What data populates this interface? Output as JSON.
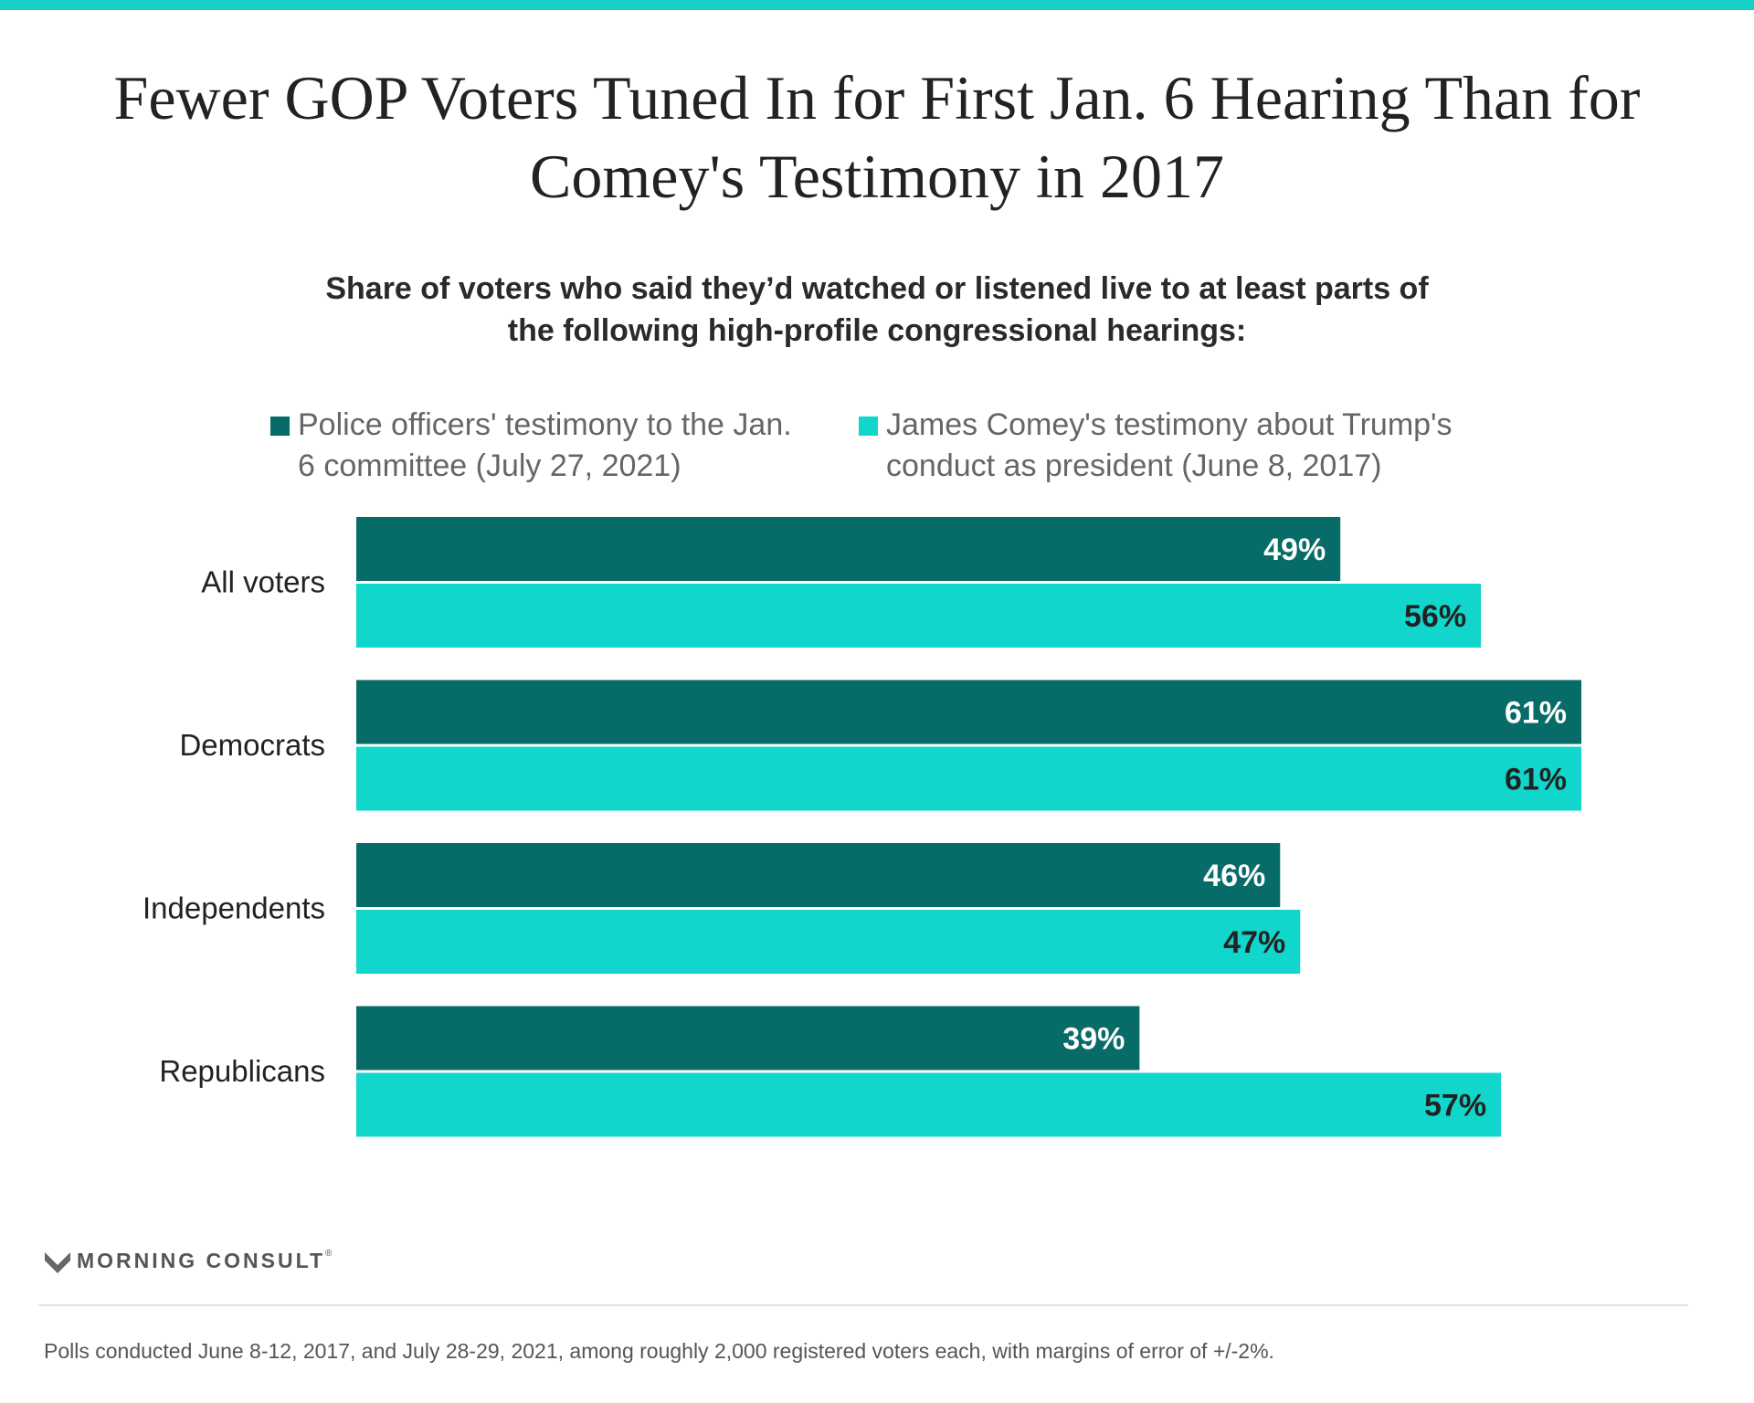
{
  "colors": {
    "top_bar": "#14d0c6",
    "series_2021": "#076b67",
    "series_2017": "#11d6cc"
  },
  "title": "Fewer GOP Voters Tuned In for First Jan. 6 Hearing Than for Comey's Testimony in 2017",
  "subtitle": "Share of voters who said they’d watched or listened live to at least parts of the following high-profile congressional hearings:",
  "chart_data": {
    "type": "bar",
    "orientation": "horizontal",
    "title": "Fewer GOP Voters Tuned In for First Jan. 6 Hearing Than for Comey's Testimony in 2017",
    "subtitle": "Share of voters who said they’d watched or listened live to at least parts of the following high-profile congressional hearings:",
    "categories": [
      "All voters",
      "Democrats",
      "Independents",
      "Republicans"
    ],
    "unit": "%",
    "xlim": [
      0,
      61
    ],
    "grid": false,
    "legend_position": "top",
    "series": [
      {
        "name": "Police officers' testimony to the Jan. 6 committee (July 27, 2021)",
        "values": [
          49,
          61,
          46,
          39
        ],
        "labels": [
          "49%",
          "61%",
          "46%",
          "39%"
        ],
        "color": "#076b67",
        "label_color": "#ffffff"
      },
      {
        "name": "James Comey's testimony about Trump's conduct as president (June 8, 2017)",
        "values": [
          56,
          61,
          47,
          57
        ],
        "labels": [
          "56%",
          "61%",
          "47%",
          "57%"
        ],
        "color": "#11d6cc",
        "label_color": "#222222"
      }
    ]
  },
  "brand": {
    "name": "MORNING CONSULT",
    "mark": "®"
  },
  "footer": "Polls conducted June 8-12, 2017, and July 28-29, 2021, among roughly 2,000 registered voters each, with margins of error of +/-2%."
}
